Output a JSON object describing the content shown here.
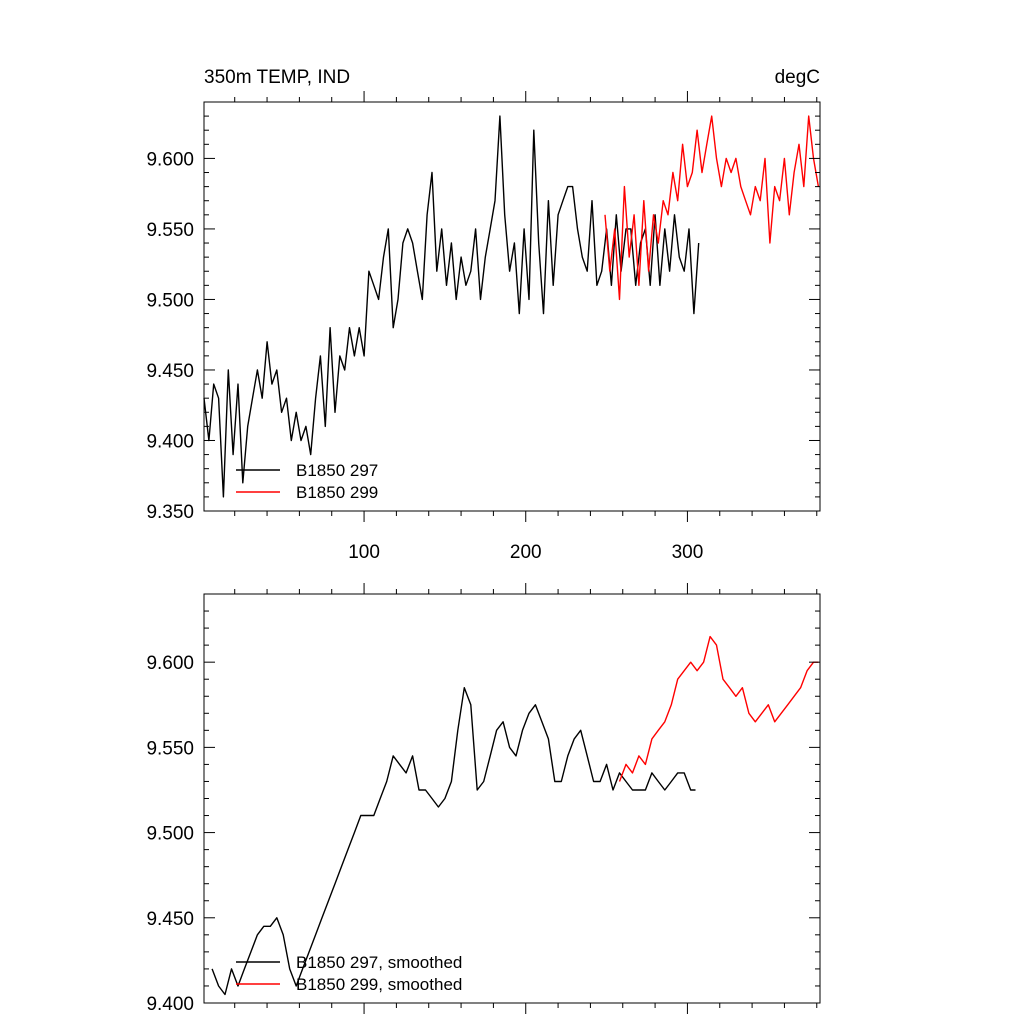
{
  "chart_data": [
    {
      "type": "line",
      "title_left": "350m TEMP, IND",
      "title_right": "degC",
      "xlabel": "",
      "ylabel": "",
      "xlim": [
        1,
        382
      ],
      "ylim": [
        9.35,
        9.64
      ],
      "xticks": [
        100,
        200,
        300
      ],
      "xtick_labels": [
        "100",
        "200",
        "300"
      ],
      "yticks": [
        9.35,
        9.4,
        9.45,
        9.5,
        9.55,
        9.6
      ],
      "ytick_labels": [
        "9.350",
        "9.400",
        "9.450",
        "9.500",
        "9.550",
        "9.600"
      ],
      "legend_position": "bottom-left",
      "series": [
        {
          "name": "B1850 297",
          "color": "#000000",
          "x": [
            1,
            4,
            7,
            10,
            13,
            16,
            19,
            22,
            25,
            28,
            31,
            34,
            37,
            40,
            43,
            46,
            49,
            52,
            55,
            58,
            61,
            64,
            67,
            70,
            73,
            76,
            79,
            82,
            85,
            88,
            91,
            94,
            97,
            100,
            103,
            106,
            109,
            112,
            115,
            118,
            121,
            124,
            127,
            130,
            133,
            136,
            139,
            142,
            145,
            148,
            151,
            154,
            157,
            160,
            163,
            166,
            169,
            172,
            175,
            178,
            181,
            184,
            187,
            190,
            193,
            196,
            199,
            202,
            205,
            208,
            211,
            214,
            217,
            220,
            223,
            226,
            229,
            232,
            235,
            238,
            241,
            244,
            247,
            250,
            253,
            256,
            259,
            262,
            265,
            268,
            271,
            274,
            277,
            280,
            283,
            286,
            289,
            292,
            295,
            298,
            301,
            304,
            307
          ],
          "values": [
            9.43,
            9.4,
            9.44,
            9.43,
            9.36,
            9.45,
            9.39,
            9.44,
            9.37,
            9.41,
            9.43,
            9.45,
            9.43,
            9.47,
            9.44,
            9.45,
            9.42,
            9.43,
            9.4,
            9.42,
            9.4,
            9.41,
            9.39,
            9.43,
            9.46,
            9.41,
            9.48,
            9.42,
            9.46,
            9.45,
            9.48,
            9.46,
            9.48,
            9.46,
            9.52,
            9.51,
            9.5,
            9.53,
            9.55,
            9.48,
            9.5,
            9.54,
            9.55,
            9.54,
            9.52,
            9.5,
            9.56,
            9.59,
            9.52,
            9.55,
            9.51,
            9.54,
            9.5,
            9.53,
            9.51,
            9.52,
            9.55,
            9.5,
            9.53,
            9.55,
            9.57,
            9.63,
            9.56,
            9.52,
            9.54,
            9.49,
            9.55,
            9.5,
            9.62,
            9.54,
            9.49,
            9.57,
            9.51,
            9.56,
            9.57,
            9.58,
            9.58,
            9.55,
            9.53,
            9.52,
            9.57,
            9.51,
            9.52,
            9.55,
            9.51,
            9.56,
            9.52,
            9.55,
            9.55,
            9.51,
            9.54,
            9.55,
            9.51,
            9.56,
            9.51,
            9.55,
            9.52,
            9.56,
            9.53,
            9.52,
            9.55,
            9.49,
            9.54
          ]
        },
        {
          "name": "B1850 299",
          "color": "#ff0000",
          "x": [
            249,
            252,
            255,
            258,
            261,
            264,
            267,
            270,
            273,
            276,
            279,
            282,
            285,
            288,
            291,
            294,
            297,
            300,
            303,
            306,
            309,
            312,
            315,
            318,
            321,
            324,
            327,
            330,
            333,
            336,
            339,
            342,
            345,
            348,
            351,
            354,
            357,
            360,
            363,
            366,
            369,
            372,
            375,
            378,
            381
          ],
          "values": [
            9.56,
            9.52,
            9.55,
            9.5,
            9.58,
            9.53,
            9.56,
            9.51,
            9.57,
            9.52,
            9.56,
            9.54,
            9.57,
            9.56,
            9.59,
            9.57,
            9.61,
            9.58,
            9.59,
            9.62,
            9.59,
            9.61,
            9.63,
            9.6,
            9.58,
            9.6,
            9.59,
            9.6,
            9.58,
            9.57,
            9.56,
            9.58,
            9.57,
            9.6,
            9.54,
            9.58,
            9.57,
            9.6,
            9.56,
            9.59,
            9.61,
            9.58,
            9.63,
            9.6,
            9.58
          ]
        }
      ]
    },
    {
      "type": "line",
      "title_left": "",
      "title_right": "",
      "xlabel": "",
      "ylabel": "",
      "xlim": [
        1,
        382
      ],
      "ylim": [
        9.4,
        9.64
      ],
      "xticks": [
        100,
        200,
        300
      ],
      "xtick_labels": [],
      "yticks": [
        9.4,
        9.45,
        9.5,
        9.55,
        9.6
      ],
      "ytick_labels": [
        "9.400",
        "9.450",
        "9.500",
        "9.550",
        "9.600"
      ],
      "legend_position": "bottom-left",
      "series": [
        {
          "name": "B1850 297, smoothed",
          "color": "#000000",
          "x": [
            6,
            10,
            14,
            18,
            22,
            26,
            30,
            34,
            38,
            42,
            46,
            50,
            54,
            58,
            62,
            66,
            70,
            74,
            78,
            82,
            86,
            90,
            94,
            98,
            102,
            106,
            110,
            114,
            118,
            122,
            126,
            130,
            134,
            138,
            142,
            146,
            150,
            154,
            158,
            162,
            166,
            170,
            174,
            178,
            182,
            186,
            190,
            194,
            198,
            202,
            206,
            210,
            214,
            218,
            222,
            226,
            230,
            234,
            238,
            242,
            246,
            250,
            254,
            258,
            262,
            266,
            270,
            274,
            278,
            282,
            286,
            290,
            294,
            298,
            302,
            305
          ],
          "values": [
            9.42,
            9.41,
            9.405,
            9.42,
            9.41,
            9.42,
            9.43,
            9.44,
            9.445,
            9.445,
            9.45,
            9.44,
            9.42,
            9.41,
            9.42,
            9.43,
            9.44,
            9.45,
            9.46,
            9.47,
            9.48,
            9.49,
            9.5,
            9.51,
            9.51,
            9.51,
            9.52,
            9.53,
            9.545,
            9.54,
            9.535,
            9.545,
            9.525,
            9.525,
            9.52,
            9.515,
            9.52,
            9.53,
            9.56,
            9.585,
            9.575,
            9.525,
            9.53,
            9.545,
            9.56,
            9.565,
            9.55,
            9.545,
            9.56,
            9.57,
            9.575,
            9.565,
            9.555,
            9.53,
            9.53,
            9.545,
            9.555,
            9.56,
            9.545,
            9.53,
            9.53,
            9.54,
            9.525,
            9.535,
            9.53,
            9.525,
            9.525,
            9.525,
            9.535,
            9.53,
            9.525,
            9.53,
            9.535,
            9.535,
            9.525,
            9.525
          ]
        },
        {
          "name": "B1850 299, smoothed",
          "color": "#ff0000",
          "x": [
            258,
            262,
            266,
            270,
            274,
            278,
            282,
            286,
            290,
            294,
            298,
            302,
            306,
            310,
            314,
            318,
            322,
            326,
            330,
            334,
            338,
            342,
            346,
            350,
            354,
            358,
            362,
            366,
            370,
            374,
            378,
            381
          ],
          "values": [
            9.53,
            9.54,
            9.535,
            9.545,
            9.54,
            9.555,
            9.56,
            9.565,
            9.575,
            9.59,
            9.595,
            9.6,
            9.595,
            9.6,
            9.615,
            9.61,
            9.59,
            9.585,
            9.58,
            9.585,
            9.57,
            9.565,
            9.57,
            9.575,
            9.565,
            9.57,
            9.575,
            9.58,
            9.585,
            9.595,
            9.6,
            9.6
          ]
        }
      ]
    }
  ]
}
